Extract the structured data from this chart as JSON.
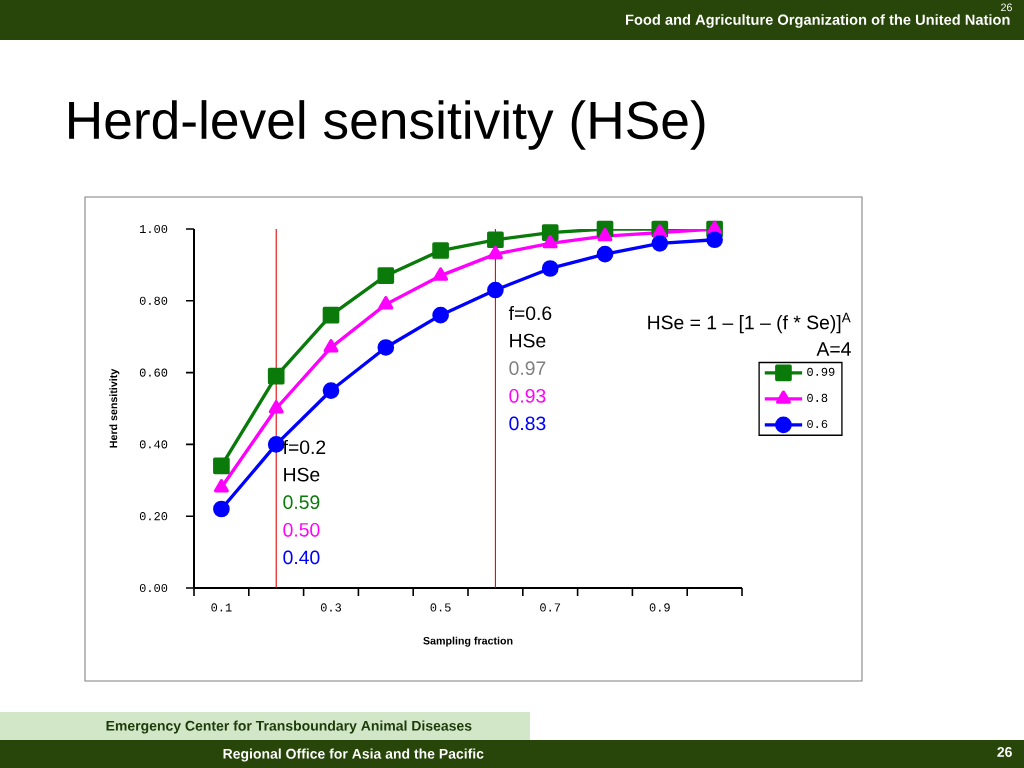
{
  "chart_data": {
    "type": "line",
    "title": "Herd-level sensitivity (HSe)",
    "xlabel": "Sampling fraction",
    "ylabel": "Herd sensitivity",
    "x": [
      0.1,
      0.2,
      0.3,
      0.4,
      0.5,
      0.6,
      0.7,
      0.8,
      0.9,
      1.0
    ],
    "series": [
      {
        "name": "0.99",
        "color": "#0a7a0a",
        "marker": "square",
        "values": [
          0.34,
          0.59,
          0.76,
          0.87,
          0.94,
          0.97,
          0.99,
          1.0,
          1.0,
          1.0
        ]
      },
      {
        "name": "0.8",
        "color": "#ff00ff",
        "marker": "triangle",
        "values": [
          0.28,
          0.5,
          0.67,
          0.79,
          0.87,
          0.93,
          0.96,
          0.98,
          0.99,
          1.0
        ]
      },
      {
        "name": "0.6",
        "color": "#0000ff",
        "marker": "circle",
        "values": [
          0.22,
          0.4,
          0.55,
          0.67,
          0.76,
          0.83,
          0.89,
          0.93,
          0.96,
          0.97
        ]
      }
    ],
    "xlim": [
      0.05,
      1.05
    ],
    "xticks": [
      {
        "value": 0.05,
        "label": null
      },
      0.1,
      {
        "value": 0.15,
        "label": null
      },
      {
        "value": 0.25,
        "label": null
      },
      0.3,
      {
        "value": 0.35,
        "label": null
      },
      {
        "value": 0.45,
        "label": null
      },
      0.5,
      {
        "value": 0.55,
        "label": null
      },
      {
        "value": 0.65,
        "label": null
      },
      0.7,
      {
        "value": 0.75,
        "label": null
      },
      {
        "value": 0.85,
        "label": null
      },
      0.9,
      {
        "value": 0.95,
        "label": null
      },
      {
        "value": 1.05,
        "label": null
      }
    ],
    "ylim": [
      0,
      1
    ],
    "yticks": [
      {
        "value": 0,
        "label": "0.00"
      },
      {
        "value": 0.2,
        "label": "0.20"
      },
      {
        "value": 0.4,
        "label": "0.40"
      },
      {
        "value": 0.6,
        "label": "0.60"
      },
      {
        "value": 0.8,
        "label": "0.80"
      },
      {
        "value": 1,
        "label": "1.00"
      }
    ],
    "ref_lines": [
      {
        "axis": "x",
        "value": 0.2,
        "color": "#e00000"
      },
      {
        "axis": "x",
        "value": 0.6,
        "color": "#e00000"
      }
    ],
    "legend": "right",
    "grid": false,
    "line_style": "solid",
    "annotations": [
      "f=0.2",
      "HSe",
      "0.59",
      "0.50",
      "0.40",
      "f=0.6",
      "HSe",
      "0.97",
      "0.93",
      "0.83",
      "HSe = 1 – [1 – (f * Se)]$^{A}$",
      "A=4",
      "Food and Agriculture Organization of the United Nation",
      "26",
      "Emergency Center for Transboundary Animal Diseases",
      "Regional Office for Asia and the Pacific",
      "26"
    ]
  }
}
